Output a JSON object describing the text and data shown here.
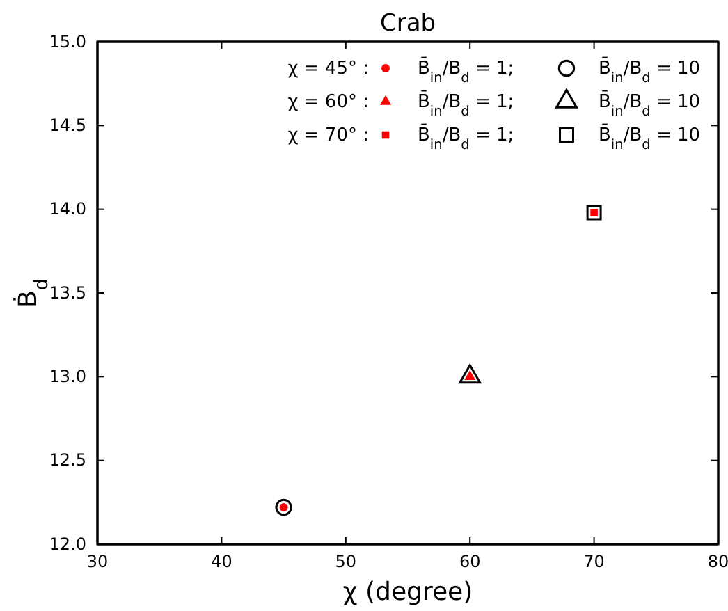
{
  "chart_data": {
    "type": "scatter",
    "title": "Crab",
    "xlabel": "χ (degree)",
    "ylabel": "Ḃ$_{d}$",
    "xlim": [
      30,
      80
    ],
    "xticks": [
      30,
      40,
      50,
      60,
      70,
      80
    ],
    "ylim": [
      12,
      15
    ],
    "yticks": [
      {
        "value": 12,
        "label": "12.0"
      },
      {
        "value": 12.5,
        "label": "12.5"
      },
      {
        "value": 13,
        "label": "13.0"
      },
      {
        "value": 13.5,
        "label": "13.5"
      },
      {
        "value": 14,
        "label": "14.0"
      },
      {
        "value": 14.5,
        "label": "14.5"
      },
      {
        "value": 15,
        "label": "15.0"
      }
    ],
    "legend": "top right",
    "grid": false,
    "annotations": [
      "χ = 45° :",
      "χ = 60° :",
      "χ = 70° :"
    ],
    "series": [
      {
        "name": "B̄$_{in}$/B$_{d}$ = 1;",
        "color": "#ff0000",
        "marker": "circle",
        "x": [
          45
        ],
        "values": [
          12.22
        ]
      },
      {
        "name": "B̄$_{in}$/B$_{d}$ = 10",
        "color": "#000000",
        "marker": "circle",
        "x": [
          45
        ],
        "values": [
          12.22
        ]
      },
      {
        "name": "B̄$_{in}$/B$_{d}$ = 1;",
        "color": "#ff0000",
        "marker": "triangle",
        "x": [
          60
        ],
        "values": [
          13.0
        ]
      },
      {
        "name": "B̄$_{in}$/B$_{d}$ = 10",
        "color": "#000000",
        "marker": "triangle",
        "x": [
          60
        ],
        "values": [
          13.0
        ]
      },
      {
        "name": "B̄$_{in}$/B$_{d}$ = 1;",
        "color": "#ff0000",
        "marker": "square",
        "x": [
          70
        ],
        "values": [
          13.98
        ]
      },
      {
        "name": "B̄$_{in}$/B$_{d}$ = 10",
        "color": "#000000",
        "marker": "square",
        "x": [
          70
        ],
        "values": [
          13.98
        ]
      }
    ]
  }
}
